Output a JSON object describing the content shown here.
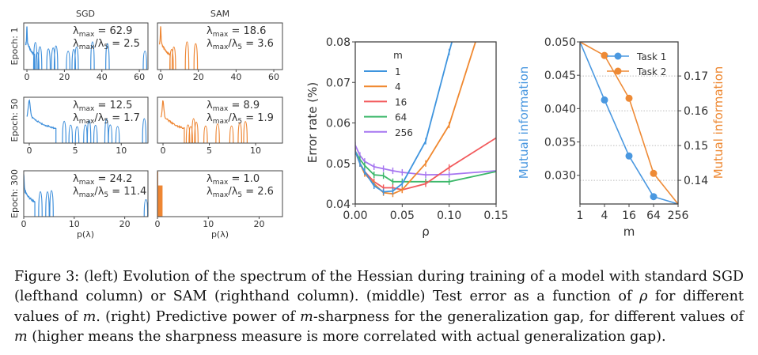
{
  "colors": {
    "sgd": "#3e8fdb",
    "sam": "#ee8633",
    "m1": "#3e94de",
    "m4": "#f0882f",
    "m16": "#f25a5c",
    "m64": "#3db86b",
    "m256": "#a676f0",
    "task1": "#4a98e0",
    "task2": "#ee8a35",
    "axis": "#444444",
    "grid": "#bbbbbb"
  },
  "chart_data": [
    {
      "type": "line",
      "panel": "left",
      "column_titles": [
        "SGD",
        "SAM"
      ],
      "row_labels": [
        "Epoch: 1",
        "Epoch: 50",
        "Epoch: 300"
      ],
      "xlabel": "p(λ)",
      "y_scale": "log",
      "label_parts": {
        "lambda": "λ",
        "max": "max",
        "eq": " = ",
        "slash": "/λ",
        "five": "5"
      },
      "rows": [
        {
          "xlim": [
            -1.7,
            64.6
          ],
          "xticks": [
            0,
            20,
            40,
            60
          ],
          "sgd": {
            "lambda_max": "62.9",
            "ratio": "2.5",
            "bulk_edge": 4,
            "outliers": [
              4.5,
              5.5,
              7,
              11.5,
              14,
              15.5,
              22,
              25,
              26.5,
              35,
              43,
              63
            ]
          },
          "sam": {
            "lambda_max": "18.6",
            "ratio": "3.6",
            "bulk_edge": 5,
            "outliers": [
              5.8,
              7,
              14,
              18.6
            ]
          }
        },
        {
          "xlim": [
            -0.6,
            12.9
          ],
          "xticks": [
            0,
            5,
            10
          ],
          "sgd": {
            "lambda_max": "12.5",
            "ratio": "1.7",
            "bulk_edge": 2.9,
            "outliers": [
              3.8,
              4.5,
              5.2,
              6.1,
              6.5,
              7.2,
              8.4,
              8.8,
              9.6,
              12.5
            ]
          },
          "sam": {
            "lambda_max": "8.9",
            "ratio": "1.9",
            "bulk_edge": 2.3,
            "outliers": [
              2.7,
              3.0,
              3.3,
              3.6,
              4.6,
              5.9,
              7.4,
              8.3,
              8.9
            ]
          }
        },
        {
          "xlim": [
            0,
            24.6
          ],
          "xticks": [
            0,
            10,
            20
          ],
          "sgd": {
            "lambda_max": "24.2",
            "ratio": "11.4",
            "bulk_edge": 2.2,
            "outliers": [
              3.3,
              4.7,
              5.5,
              24.2
            ]
          },
          "sam": {
            "lambda_max": "1.0",
            "ratio": "2.6",
            "bulk_edge": 1.0,
            "outliers": []
          }
        }
      ]
    },
    {
      "type": "line",
      "panel": "middle",
      "xlabel": "ρ",
      "ylabel": "Error rate (%)",
      "xlim": [
        0,
        0.15
      ],
      "ylim": [
        0.04,
        0.08
      ],
      "xticks": [
        "0.00",
        "0.05",
        "0.10",
        "0.15"
      ],
      "yticks": [
        "0.04",
        "0.05",
        "0.06",
        "0.07",
        "0.08"
      ],
      "legend_title": "m",
      "legend_position": "upper-left",
      "x": [
        0,
        0.005,
        0.01,
        0.02,
        0.03,
        0.04,
        0.05,
        0.075,
        0.1,
        0.15
      ],
      "series": [
        {
          "name": "1",
          "color_key": "m1",
          "values": [
            0.053,
            0.05,
            0.048,
            0.0445,
            0.043,
            0.0432,
            0.045,
            0.0555,
            0.0775,
            0.12
          ]
        },
        {
          "name": "4",
          "color_key": "m4",
          "values": [
            0.053,
            0.05,
            0.0475,
            0.045,
            0.0428,
            0.0425,
            0.0435,
            0.05,
            0.0595,
            0.096
          ]
        },
        {
          "name": "16",
          "color_key": "m16",
          "values": [
            0.053,
            0.05,
            0.048,
            0.0455,
            0.044,
            0.044,
            0.0435,
            0.045,
            0.049,
            0.0563
          ]
        },
        {
          "name": "64",
          "color_key": "m64",
          "values": [
            0.053,
            0.051,
            0.0495,
            0.0472,
            0.047,
            0.0455,
            0.0455,
            0.0455,
            0.0455,
            0.048
          ]
        },
        {
          "name": "256",
          "color_key": "m256",
          "values": [
            0.0545,
            0.052,
            0.0505,
            0.0492,
            0.0487,
            0.0482,
            0.0478,
            0.0472,
            0.0473,
            0.0482
          ]
        }
      ]
    },
    {
      "type": "line",
      "panel": "right",
      "xlabel": "m",
      "x_scale": "log",
      "x": [
        1,
        4,
        16,
        64,
        256
      ],
      "xticks": [
        "1",
        "4",
        "16",
        "64",
        "256"
      ],
      "ylabel_left": "Mutual information",
      "ylabel_right": "Mutual information",
      "ylim_left": [
        0.0257,
        0.05
      ],
      "ylim_right": [
        0.1332,
        0.1798
      ],
      "yticks_left": [
        "0.050",
        "0.045",
        "0.040",
        "0.035",
        "0.030"
      ],
      "yticks_right": [
        "0.17",
        "0.16",
        "0.15",
        "0.14"
      ],
      "grid": "horizontal dotted (right axis)",
      "legend_position": "upper-right",
      "series": [
        {
          "name": "Task 1",
          "axis": "left",
          "color_key": "task1",
          "values": [
            0.05,
            0.0413,
            0.0329,
            0.0268,
            0.0257
          ]
        },
        {
          "name": "Task 2",
          "axis": "right",
          "color_key": "task2",
          "values": [
            0.1798,
            0.1759,
            0.1636,
            0.142,
            0.1332
          ]
        }
      ]
    }
  ],
  "caption": [
    {
      "t": "Figure 3: (left) Evolution of the spectrum of the Hessian during training of a model with standard SGD (lefthand column) or SAM (righthand column). (middle) Test error as a function of "
    },
    {
      "t": "ρ",
      "i": true
    },
    {
      "t": " for different values of "
    },
    {
      "t": "m",
      "i": true
    },
    {
      "t": ". (right) Predictive power of "
    },
    {
      "t": "m",
      "i": true
    },
    {
      "t": "-sharpness for the generalization gap, for different values of "
    },
    {
      "t": "m",
      "i": true
    },
    {
      "t": " (higher means the sharpness measure is more correlated with actual generalization gap)."
    }
  ]
}
